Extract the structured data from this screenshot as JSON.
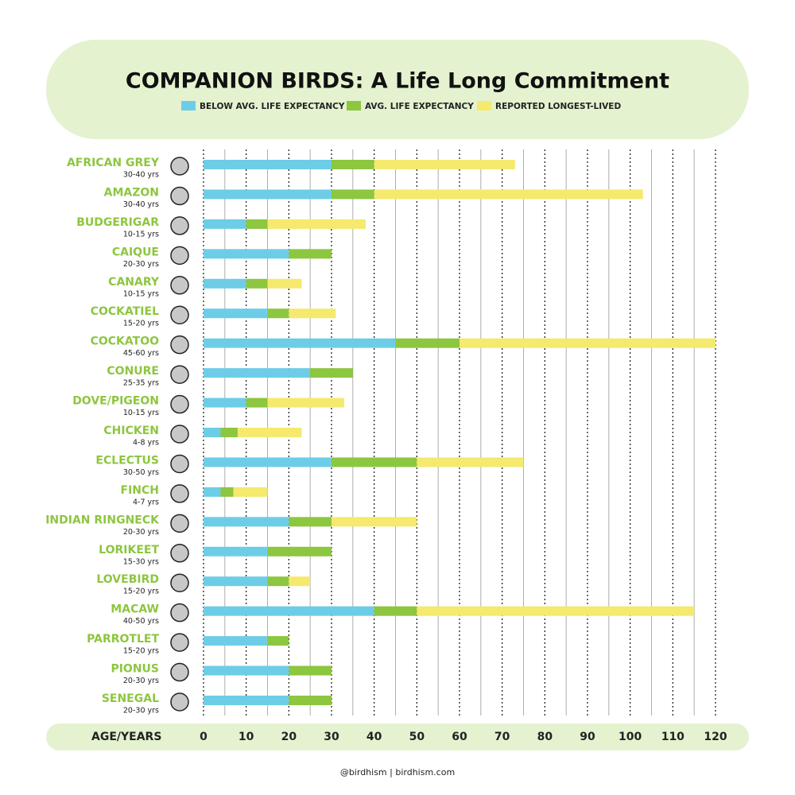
{
  "chart_data": {
    "type": "stacked-bar-horizontal",
    "title": "COMPANION BIRDS: A Life Long Commitment",
    "categories": [
      "AFRICAN GREY",
      "AMAZON",
      "BUDGERIGAR",
      "CAIQUE",
      "CANARY",
      "COCKATIEL",
      "COCKATOO",
      "CONURE",
      "DOVE/PIGEON",
      "CHICKEN",
      "ECLECTUS",
      "FINCH",
      "INDIAN RINGNECK",
      "LORIKEET",
      "LOVEBIRD",
      "MACAW",
      "PARROTLET",
      "PIONUS",
      "SENEGAL"
    ],
    "category_sublabels": [
      "30-40 yrs",
      "30-40 yrs",
      "10-15 yrs",
      "20-30 yrs",
      "10-15 yrs",
      "15-20 yrs",
      "45-60 yrs",
      "25-35 yrs",
      "10-15 yrs",
      "4-8 yrs",
      "30-50 yrs",
      "4-7 yrs",
      "20-30 yrs",
      "15-30 yrs",
      "15-20 yrs",
      "40-50 yrs",
      "15-20 yrs",
      "20-30 yrs",
      "20-30 yrs"
    ],
    "series": [
      {
        "name": "BELOW AVG. LIFE EXPECTANCY",
        "color": "#6dcde6",
        "values": [
          30,
          30,
          10,
          20,
          10,
          15,
          45,
          25,
          10,
          4,
          30,
          4,
          20,
          15,
          15,
          40,
          15,
          20,
          20
        ]
      },
      {
        "name": "AVG. LIFE EXPECTANCY",
        "color": "#8dc63f",
        "values": [
          10,
          10,
          5,
          10,
          5,
          5,
          15,
          10,
          5,
          4,
          20,
          3,
          10,
          15,
          5,
          10,
          5,
          10,
          10
        ]
      },
      {
        "name": "REPORTED LONGEST-LIVED",
        "color": "#f5e96e",
        "values": [
          33,
          63,
          23,
          0,
          8,
          11,
          60,
          0,
          18,
          15,
          25,
          8,
          20,
          0,
          5,
          65,
          0,
          0,
          0
        ]
      }
    ],
    "x_label": "AGE/YEARS",
    "xlim": [
      0,
      120
    ],
    "xticks": [
      0,
      10,
      20,
      30,
      40,
      50,
      60,
      70,
      80,
      90,
      100,
      110,
      120
    ],
    "minor_xticks": [
      5,
      15,
      25,
      35,
      45,
      55,
      65,
      75,
      85,
      95,
      105,
      115
    ],
    "grid": true,
    "footer": "@birdhism | birdhism.com"
  }
}
